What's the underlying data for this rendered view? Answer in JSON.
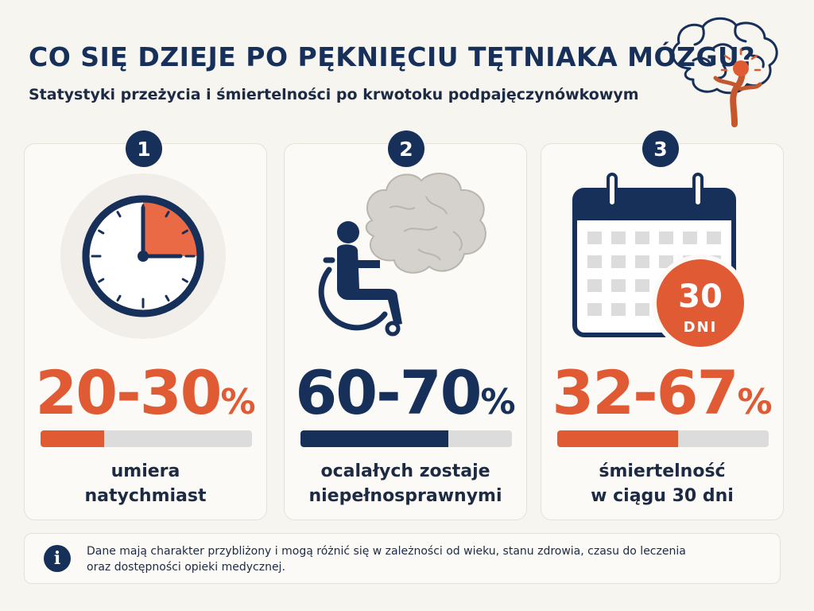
{
  "header": {
    "title": "CO SIĘ DZIEJE PO PĘKNIĘCIU TĘTNIAKA MÓZGU?",
    "subtitle": "Statystyki przeżycia i śmiertelności po krwotoku podpajęczynówkowym"
  },
  "cards": [
    {
      "number": "1",
      "icon": "clock-icon",
      "value": "20-30",
      "unit": "%",
      "progress": 0.3,
      "color": "#e05a33",
      "description_line1": "umiera",
      "description_line2": "natychmiast"
    },
    {
      "number": "2",
      "icon": "wheelchair-icon",
      "value": "60-70",
      "unit": "%",
      "progress": 0.7,
      "color": "#16305a",
      "description_line1": "ocalałych zostaje",
      "description_line2": "niepełnosprawnymi"
    },
    {
      "number": "3",
      "icon": "calendar-icon",
      "value": "32-67",
      "unit": "%",
      "progress": 0.57,
      "color": "#e05a33",
      "badge_number": "30",
      "badge_unit": "DNI",
      "description_line1": "śmiertelność",
      "description_line2": "w ciągu 30 dni"
    }
  ],
  "note": {
    "icon": "info-icon",
    "icon_glyph": "i",
    "line1": "Dane mają charakter przybliżony i mogą różnić się w zależności od wieku, stanu zdrowia, czasu do leczenia",
    "line2": "oraz dostępności opieki medycznej."
  },
  "colors": {
    "navy": "#16305a",
    "orange": "#e05a33",
    "background": "#f7f5f0"
  }
}
